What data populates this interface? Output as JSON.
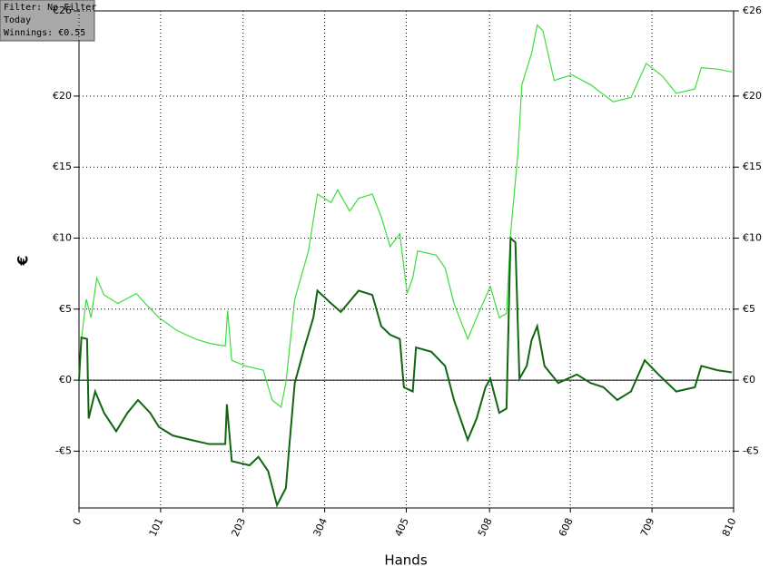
{
  "info_box": {
    "lines": [
      "Filter: No Filter",
      "Today",
      "Winnings: €0.55"
    ]
  },
  "chart_data": {
    "type": "line",
    "xlabel": "Hands",
    "ylabel": "€",
    "xlim": [
      0,
      810
    ],
    "xticks": [
      0,
      101,
      203,
      304,
      405,
      508,
      608,
      709,
      810
    ],
    "ylim": [
      -9,
      26
    ],
    "yticks": [
      {
        "value": -5,
        "label": "-€5"
      },
      {
        "value": 0,
        "label": "€0"
      },
      {
        "value": 5,
        "label": "€5"
      },
      {
        "value": 10,
        "label": "€10"
      },
      {
        "value": 15,
        "label": "€15"
      },
      {
        "value": 20,
        "label": "€20"
      },
      {
        "value": 26,
        "label": "€26"
      }
    ],
    "grid": true,
    "series": [
      {
        "color": "#3ddc3d",
        "x": [
          0,
          3,
          9,
          15,
          22,
          31,
          48,
          71,
          82,
          99,
          121,
          144,
          161,
          181,
          184,
          189,
          206,
          228,
          239,
          250,
          256,
          267,
          284,
          295,
          312,
          320,
          335,
          346,
          363,
          374,
          385,
          397,
          406,
          413,
          419,
          442,
          453,
          464,
          481,
          492,
          509,
          520,
          529,
          534,
          543,
          548,
          560,
          567,
          574,
          588,
          610,
          633,
          661,
          683,
          702,
          722,
          739,
          762,
          770,
          790,
          808
        ],
        "values": [
          0,
          2.9,
          5.7,
          4.4,
          7.2,
          6.0,
          5.4,
          6.1,
          5.4,
          4.4,
          3.5,
          2.9,
          2.6,
          2.4,
          4.9,
          1.4,
          1.0,
          0.7,
          -1.4,
          -1.9,
          -0.2,
          5.7,
          9.1,
          13.1,
          12.5,
          13.4,
          11.9,
          12.8,
          13.1,
          11.5,
          9.4,
          10.3,
          6.1,
          7.2,
          9.1,
          8.8,
          7.9,
          5.4,
          2.9,
          4.4,
          6.6,
          4.4,
          4.7,
          10.3,
          15.9,
          20.8,
          23.0,
          25.0,
          24.6,
          21.1,
          21.5,
          20.8,
          19.6,
          19.9,
          22.3,
          21.4,
          20.2,
          20.5,
          22.0,
          21.9,
          21.7
        ]
      },
      {
        "color": "#116611",
        "x": [
          0,
          3,
          10,
          12,
          20,
          31,
          46,
          60,
          73,
          88,
          99,
          116,
          138,
          161,
          181,
          183,
          189,
          211,
          222,
          234,
          245,
          256,
          260,
          267,
          279,
          290,
          295,
          312,
          324,
          346,
          363,
          374,
          385,
          397,
          402,
          413,
          417,
          436,
          453,
          464,
          481,
          492,
          503,
          509,
          520,
          529,
          534,
          540,
          545,
          554,
          560,
          567,
          576,
          593,
          616,
          633,
          649,
          666,
          683,
          700,
          717,
          739,
          762,
          770,
          790,
          808
        ],
        "values": [
          0,
          3.0,
          2.9,
          -2.7,
          -0.8,
          -2.3,
          -3.6,
          -2.3,
          -1.4,
          -2.3,
          -3.3,
          -3.9,
          -4.2,
          -4.5,
          -4.5,
          -1.7,
          -5.7,
          -6.0,
          -5.4,
          -6.4,
          -8.8,
          -7.6,
          -4.8,
          -0.2,
          2.3,
          4.4,
          6.3,
          5.4,
          4.8,
          6.3,
          6.0,
          3.8,
          3.2,
          2.9,
          -0.5,
          -0.8,
          2.3,
          2.0,
          1.0,
          -1.4,
          -4.2,
          -2.7,
          -0.5,
          0.1,
          -2.3,
          -2.0,
          10.0,
          9.7,
          0.1,
          1.0,
          2.8,
          3.8,
          1.0,
          -0.2,
          0.4,
          -0.2,
          -0.5,
          -1.4,
          -0.8,
          1.4,
          0.4,
          -0.8,
          -0.5,
          1.0,
          0.7,
          0.55
        ]
      }
    ]
  }
}
